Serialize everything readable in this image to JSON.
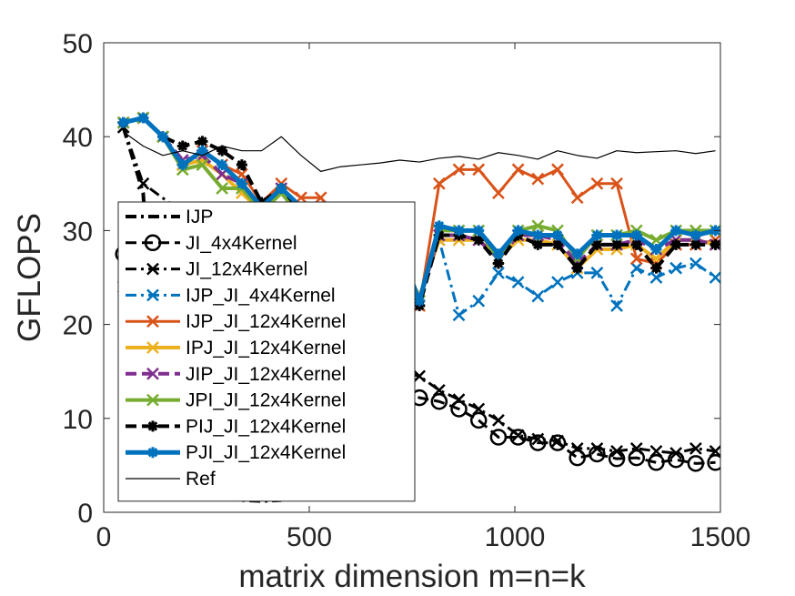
{
  "chart_data": {
    "type": "line",
    "title": "",
    "xlabel": "matrix dimension m=n=k",
    "ylabel": "GFLOPS",
    "xlim": [
      0,
      1500
    ],
    "ylim": [
      0,
      50
    ],
    "xticks": [
      0,
      500,
      1000,
      1500
    ],
    "yticks": [
      0,
      10,
      20,
      30,
      40,
      50
    ],
    "xtick_labels": [
      "0",
      "500",
      "1000",
      "1500"
    ],
    "ytick_labels": [
      "0",
      "10",
      "20",
      "30",
      "40",
      "50"
    ],
    "grid": false,
    "legend_position": "left",
    "series": [
      {
        "name": "IJP",
        "color": "#000000",
        "style": "dashdot",
        "marker": "none",
        "width": 4,
        "x": [
          48,
          96,
          144,
          192,
          240,
          288,
          336,
          384,
          432
        ],
        "y": [
          41,
          34,
          2.2,
          1.8,
          1.6,
          1.5,
          1.3,
          1.2,
          1.3
        ]
      },
      {
        "name": "JI_4x4Kernel",
        "color": "#000000",
        "style": "dashed",
        "marker": "circle",
        "width": 3,
        "x": [
          48,
          720,
          768,
          816,
          864,
          912,
          960,
          1008,
          1056,
          1104,
          1152,
          1200,
          1248,
          1296,
          1344,
          1392,
          1440,
          1488
        ],
        "y": [
          27.5,
          13,
          12.2,
          11.8,
          11,
          9.8,
          8,
          8,
          7.4,
          7.4,
          5.8,
          6.2,
          5.7,
          5.8,
          5.3,
          5.6,
          5.2,
          5.3
        ]
      },
      {
        "name": "JI_12x4Kernel",
        "color": "#000000",
        "style": "dashdot",
        "marker": "x",
        "width": 3,
        "x": [
          48,
          96,
          720,
          768,
          816,
          864,
          912,
          960,
          1008,
          1056,
          1104,
          1152,
          1200,
          1248,
          1296,
          1344,
          1392,
          1440,
          1488
        ],
        "y": [
          41,
          35,
          15,
          14.5,
          13,
          12,
          11,
          9.8,
          8.2,
          7.8,
          7.6,
          6.8,
          6.8,
          6.5,
          6.8,
          6.5,
          6.3,
          6.8,
          6.5
        ]
      },
      {
        "name": "IJP_JI_4x4Kernel",
        "color": "#0072BD",
        "style": "dashdot",
        "marker": "x",
        "width": 3,
        "x": [
          48,
          768,
          816,
          864,
          912,
          960,
          1008,
          1056,
          1104,
          1152,
          1200,
          1248,
          1296,
          1344,
          1392,
          1440,
          1488
        ],
        "y": [
          24,
          23,
          29,
          21,
          22.5,
          25.5,
          24.5,
          23,
          24.5,
          25.5,
          25.5,
          22,
          26,
          25,
          26,
          26.5,
          25
        ]
      },
      {
        "name": "IJP_JI_12x4Kernel",
        "color": "#D95319",
        "style": "solid",
        "marker": "x",
        "width": 3,
        "x": [
          48,
          96,
          144,
          192,
          240,
          288,
          336,
          384,
          432,
          480,
          528,
          576,
          624,
          672,
          720,
          768,
          816,
          864,
          912,
          960,
          1008,
          1056,
          1104,
          1152,
          1200,
          1248,
          1296,
          1344,
          1392,
          1440,
          1488
        ],
        "y": [
          41.5,
          42,
          40,
          37,
          38.5,
          37,
          36,
          33,
          35,
          33.5,
          33.5,
          31,
          30,
          29,
          28,
          22,
          35,
          36.5,
          36.5,
          34,
          36.5,
          35.5,
          36.5,
          33.5,
          35,
          35,
          27,
          26.5,
          28.5,
          28.5,
          29
        ]
      },
      {
        "name": "IPJ_JI_12x4Kernel",
        "color": "#EDB120",
        "style": "solid",
        "marker": "x",
        "width": 4,
        "x": [
          48,
          96,
          144,
          192,
          240,
          288,
          336,
          384,
          432,
          480,
          528,
          576,
          624,
          672,
          720,
          768,
          816,
          864,
          912,
          960,
          1008,
          1056,
          1104,
          1152,
          1200,
          1248,
          1296,
          1344,
          1392,
          1440,
          1488
        ],
        "y": [
          41.5,
          42,
          40,
          37,
          37.5,
          36,
          34,
          32,
          34,
          32,
          32,
          30,
          29.5,
          28,
          27,
          23,
          29,
          29,
          29,
          27,
          29,
          29,
          28.5,
          26,
          28,
          28,
          28.5,
          27,
          29,
          29,
          28.5
        ]
      },
      {
        "name": "JIP_JI_12x4Kernel",
        "color": "#7E2F8E",
        "style": "dashed",
        "marker": "x",
        "width": 4,
        "x": [
          48,
          96,
          144,
          192,
          240,
          288,
          336,
          384,
          432,
          480,
          528,
          576,
          624,
          672,
          720,
          768,
          816,
          864,
          912,
          960,
          1008,
          1056,
          1104,
          1152,
          1200,
          1248,
          1296,
          1344,
          1392,
          1440,
          1488
        ],
        "y": [
          41.5,
          42,
          40,
          37.5,
          38,
          36,
          35,
          32.5,
          34.5,
          32.5,
          32.5,
          30,
          29.5,
          28.5,
          28,
          22.5,
          29.5,
          29.5,
          29,
          27,
          29.5,
          29.5,
          29,
          26.5,
          28.5,
          28.5,
          29,
          28,
          29,
          29,
          28.5
        ]
      },
      {
        "name": "JPI_JI_12x4Kernel",
        "color": "#77AC30",
        "style": "solid",
        "marker": "x",
        "width": 4,
        "x": [
          48,
          96,
          144,
          192,
          240,
          288,
          336,
          384,
          432,
          480,
          528,
          576,
          624,
          672,
          720,
          768,
          816,
          864,
          912,
          960,
          1008,
          1056,
          1104,
          1152,
          1200,
          1248,
          1296,
          1344,
          1392,
          1440,
          1488
        ],
        "y": [
          41.5,
          42,
          40,
          36.5,
          37,
          34.5,
          34.5,
          32,
          34,
          31.5,
          31.5,
          29.5,
          29.5,
          28,
          27,
          22.5,
          30,
          30,
          30,
          27,
          30,
          30.5,
          30,
          27,
          29.5,
          29.5,
          30,
          29,
          30,
          30,
          30
        ]
      },
      {
        "name": "PIJ_JI_12x4Kernel",
        "color": "#000000",
        "style": "dashed",
        "marker": "star",
        "width": 4,
        "x": [
          48,
          96,
          144,
          192,
          240,
          288,
          336,
          384,
          432,
          480,
          528,
          576,
          624,
          672,
          720,
          768,
          816,
          864,
          912,
          960,
          1008,
          1056,
          1104,
          1152,
          1200,
          1248,
          1296,
          1344,
          1392,
          1440,
          1488
        ],
        "y": [
          41.5,
          42,
          40,
          39,
          39.5,
          38.5,
          37,
          33,
          34.5,
          32,
          32,
          29.5,
          29.5,
          28.5,
          27.5,
          22,
          29.5,
          29.5,
          29,
          26.5,
          29.5,
          28.5,
          28.5,
          26,
          28.5,
          28.5,
          28.5,
          26,
          28.5,
          28.5,
          28.5
        ]
      },
      {
        "name": "PJI_JI_12x4Kernel",
        "color": "#0072BD",
        "style": "solid",
        "marker": "star",
        "width": 5,
        "x": [
          48,
          96,
          144,
          192,
          240,
          288,
          336,
          384,
          432,
          480,
          528,
          576,
          624,
          672,
          720,
          768,
          816,
          864,
          912,
          960,
          1008,
          1056,
          1104,
          1152,
          1200,
          1248,
          1296,
          1344,
          1392,
          1440,
          1488
        ],
        "y": [
          41.5,
          42,
          40,
          37,
          38.5,
          37,
          35,
          32.5,
          34.5,
          32.5,
          32.5,
          30,
          30,
          28.5,
          28,
          22.5,
          30.5,
          30,
          30,
          27.5,
          30,
          29.5,
          29.5,
          27.5,
          29.5,
          29.5,
          29.5,
          28,
          30,
          29.5,
          30
        ]
      },
      {
        "name": "Ref",
        "color": "#000000",
        "style": "solid",
        "marker": "none",
        "width": 1.2,
        "x": [
          48,
          96,
          144,
          192,
          240,
          288,
          336,
          384,
          432,
          480,
          528,
          576,
          624,
          672,
          720,
          768,
          816,
          864,
          912,
          960,
          1008,
          1056,
          1104,
          1152,
          1200,
          1248,
          1296,
          1344,
          1392,
          1440,
          1488
        ],
        "y": [
          40.5,
          39,
          38,
          38.5,
          38,
          39,
          38.5,
          38.5,
          40,
          38,
          36.3,
          36.8,
          37,
          37.2,
          37.5,
          37.3,
          37.7,
          37.9,
          37.6,
          38.3,
          38,
          37.6,
          38.5,
          38,
          37.7,
          38.5,
          38.3,
          38.4,
          38.5,
          38.2,
          38.5
        ]
      }
    ]
  }
}
